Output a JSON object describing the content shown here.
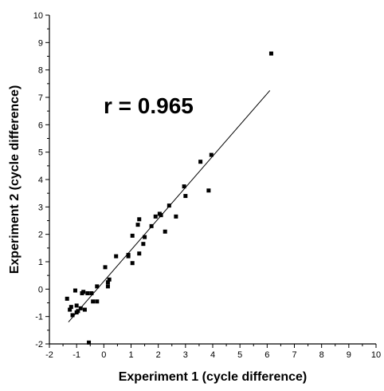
{
  "chart_data": {
    "type": "scatter",
    "xlabel": "Experiment 1 (cycle difference)",
    "ylabel": "Experiment 2 (cycle difference)",
    "xlim": [
      -2,
      10
    ],
    "ylim": [
      -2,
      10
    ],
    "x_ticks": [
      "-2",
      "-1",
      "0",
      "1",
      "2",
      "3",
      "4",
      "5",
      "6",
      "7",
      "8",
      "9",
      "10"
    ],
    "y_ticks": [
      "-2",
      "-1",
      "0",
      "1",
      "2",
      "3",
      "4",
      "5",
      "6",
      "7",
      "8",
      "9",
      "10"
    ],
    "grid": false,
    "annotation": "r = 0.965",
    "fit_line": {
      "x": [
        -1.3,
        6.1
      ],
      "y": [
        -1.2,
        7.25
      ]
    },
    "points": [
      [
        -1.35,
        -0.35
      ],
      [
        -1.25,
        -0.75
      ],
      [
        -1.2,
        -0.65
      ],
      [
        -1.15,
        -0.95
      ],
      [
        -1.05,
        -0.05
      ],
      [
        -1.0,
        -0.6
      ],
      [
        -1.0,
        -0.85
      ],
      [
        -0.95,
        -0.8
      ],
      [
        -0.85,
        -0.7
      ],
      [
        -0.8,
        -0.15
      ],
      [
        -0.75,
        -0.1
      ],
      [
        -0.7,
        -0.75
      ],
      [
        -0.6,
        -0.15
      ],
      [
        -0.55,
        -1.95
      ],
      [
        -0.45,
        -0.15
      ],
      [
        -0.4,
        -0.45
      ],
      [
        -0.25,
        -0.45
      ],
      [
        -0.25,
        0.1
      ],
      [
        0.05,
        0.8
      ],
      [
        0.15,
        0.1
      ],
      [
        0.15,
        0.25
      ],
      [
        0.2,
        0.35
      ],
      [
        0.45,
        1.2
      ],
      [
        0.9,
        1.2
      ],
      [
        0.9,
        1.25
      ],
      [
        1.05,
        0.95
      ],
      [
        1.05,
        1.95
      ],
      [
        1.25,
        2.35
      ],
      [
        1.3,
        1.3
      ],
      [
        1.3,
        2.55
      ],
      [
        1.45,
        1.65
      ],
      [
        1.5,
        1.9
      ],
      [
        1.75,
        2.3
      ],
      [
        1.9,
        2.65
      ],
      [
        2.05,
        2.75
      ],
      [
        2.1,
        2.7
      ],
      [
        2.25,
        2.1
      ],
      [
        2.4,
        3.05
      ],
      [
        2.65,
        2.65
      ],
      [
        2.95,
        3.75
      ],
      [
        3.0,
        3.4
      ],
      [
        3.55,
        4.65
      ],
      [
        3.85,
        3.6
      ],
      [
        3.95,
        4.9
      ],
      [
        6.15,
        8.6
      ]
    ]
  }
}
